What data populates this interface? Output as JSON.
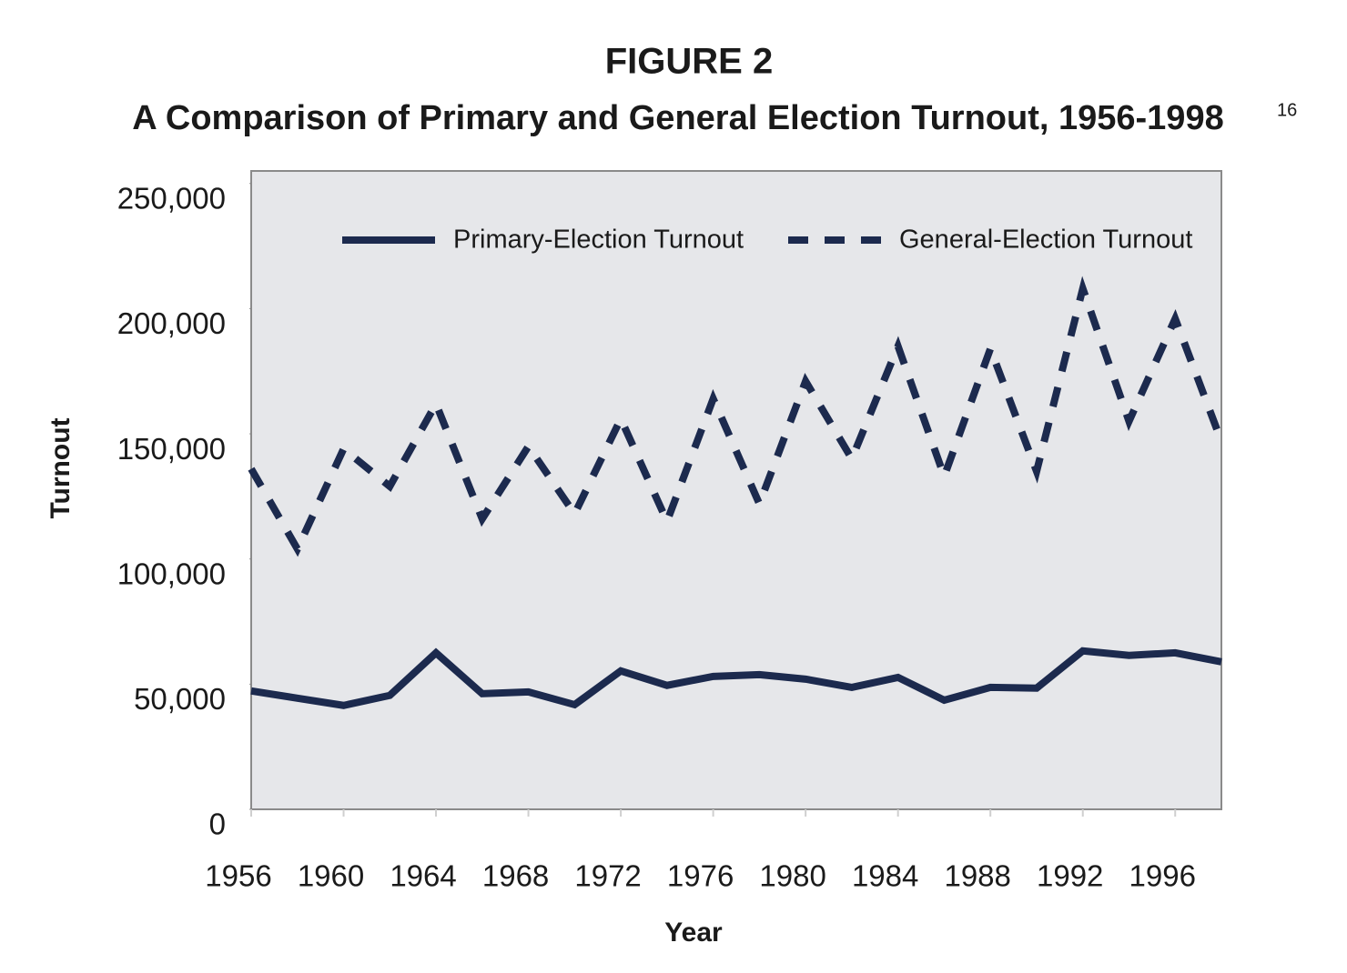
{
  "chart_data": {
    "type": "line",
    "title": "FIGURE 2",
    "subtitle": "A Comparison of Primary and General Election Turnout, 1956-1998",
    "subtitle_footnote": "16",
    "x_label": "Year",
    "y_label": "Turnout",
    "x": [
      1956,
      1958,
      1960,
      1962,
      1964,
      1966,
      1968,
      1970,
      1972,
      1974,
      1976,
      1978,
      1980,
      1982,
      1984,
      1986,
      1988,
      1990,
      1992,
      1994,
      1996,
      1998
    ],
    "series": [
      {
        "name": "Primary-Election Turnout",
        "color": "#1c2a4e",
        "dash": "solid",
        "values": [
          47300,
          44400,
          41500,
          45500,
          62500,
          46200,
          46900,
          41800,
          55300,
          49500,
          53100,
          53800,
          52000,
          48700,
          52700,
          43600,
          48700,
          48400,
          63300,
          61500,
          62500,
          58900
        ]
      },
      {
        "name": "General-Election Turnout",
        "color": "#1c2a4e",
        "dash": "dashed",
        "values": [
          136000,
          104000,
          144000,
          129000,
          162000,
          116000,
          145000,
          118000,
          156000,
          115000,
          164000,
          122000,
          171000,
          140000,
          185000,
          133000,
          184000,
          135000,
          208000,
          155000,
          196000,
          147000
        ]
      }
    ],
    "xlim": [
      1956,
      1998
    ],
    "xticks": [
      1956,
      1960,
      1964,
      1968,
      1972,
      1976,
      1980,
      1984,
      1988,
      1992,
      1996
    ],
    "ylim": [
      0,
      255000
    ],
    "yticks": [
      0,
      {
        "value": 50000,
        "label": "50,000"
      },
      {
        "value": 100000,
        "label": "100,000"
      },
      {
        "value": 150000,
        "label": "150,000"
      },
      {
        "value": 200000,
        "label": "200,000"
      },
      {
        "value": 250000,
        "label": "250,000"
      }
    ],
    "grid": false,
    "legend": "top",
    "plot_background": "#e6e7ea"
  }
}
